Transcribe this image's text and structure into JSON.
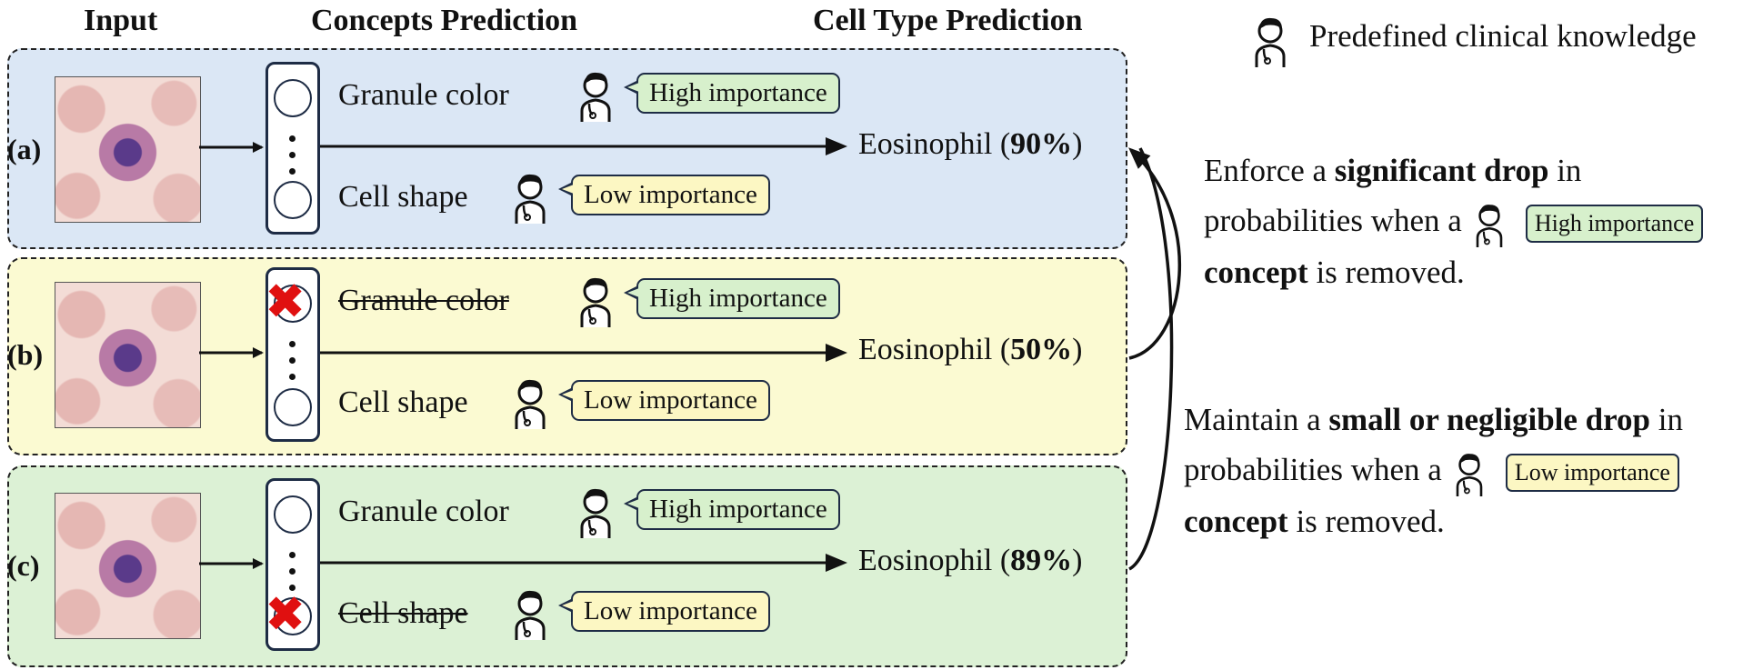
{
  "headers": {
    "input": "Input",
    "concepts": "Concepts Prediction",
    "cell_type": "Cell Type Prediction"
  },
  "legend": {
    "text": "Predefined clinical knowledge",
    "icon": "doctor-icon"
  },
  "rows": [
    {
      "label": "(a)",
      "concept_top": "Granule color",
      "concept_bottom": "Cell shape",
      "top_removed": false,
      "bottom_removed": false,
      "importance_top": "High importance",
      "importance_bottom": "Low importance",
      "prediction_class": "Eosinophil (",
      "prediction_prob": "90%",
      "prediction_close": ")",
      "background": "#dbe7f5"
    },
    {
      "label": "(b)",
      "concept_top": "Granule color",
      "concept_bottom": "Cell shape",
      "top_removed": true,
      "bottom_removed": false,
      "importance_top": "High importance",
      "importance_bottom": "Low importance",
      "prediction_class": "Eosinophil (",
      "prediction_prob": "50%",
      "prediction_close": ")",
      "background": "#fbfad2"
    },
    {
      "label": "(c)",
      "concept_top": "Granule color",
      "concept_bottom": "Cell shape",
      "top_removed": false,
      "bottom_removed": true,
      "importance_top": "High importance",
      "importance_bottom": "Low importance",
      "prediction_class": "Eosinophil (",
      "prediction_prob": "89%",
      "prediction_close": ")",
      "background": "#dcf1d5"
    }
  ],
  "rules": {
    "high": {
      "line1_pre": "Enforce a ",
      "line1_bold": "significant drop",
      "line1_post": " in",
      "line2": "probabilities when a",
      "badge": "High importance",
      "line3_bold": "concept",
      "line3_post": " is removed."
    },
    "low": {
      "line1_pre": "Maintain a ",
      "line1_bold": "small or negligible drop",
      "line1_post": " in",
      "line2": "probabilities when a",
      "badge": "Low importance",
      "line3_bold": "concept",
      "line3_post": " is removed."
    }
  },
  "colors": {
    "high_badge": "#d7f0cc",
    "low_badge": "#fcf7c3",
    "removed_mark": "#e01010",
    "outline": "#1e2c45"
  }
}
